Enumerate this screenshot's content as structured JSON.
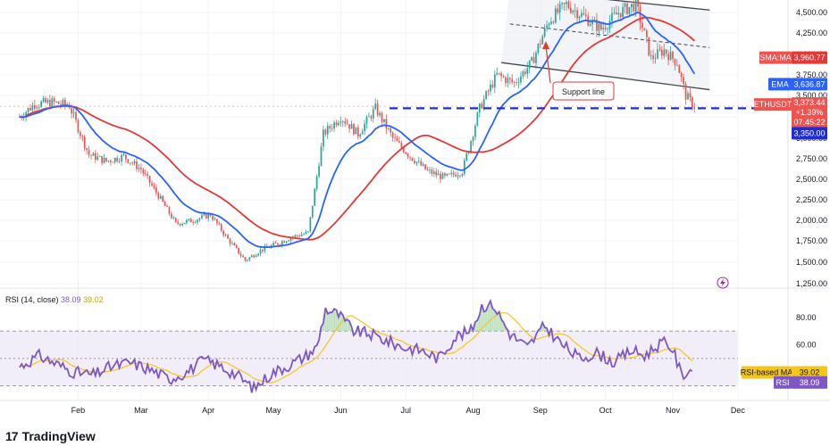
{
  "chart_data": [
    {
      "type": "candlestick",
      "symbol": "ETHUSDT",
      "x_labels": [
        "Feb",
        "Mar",
        "Apr",
        "May",
        "Jun",
        "Jul",
        "Aug",
        "Sep",
        "Oct",
        "Nov",
        "Dec"
      ],
      "y_ticks": [
        1250,
        1500,
        1750,
        2000,
        2250,
        2500,
        2750,
        3000,
        3250,
        3500,
        3750,
        4000,
        4250,
        4500
      ],
      "y_tick_labels": [
        "1,250.00",
        "1,500.00",
        "1,750.00",
        "2,000.00",
        "2,250.00",
        "2,500.00",
        "2,750.00",
        "3,000.00",
        "3,250.00",
        "3,500.00",
        "3,750.00",
        "4,000.00",
        "4,250.00",
        "4,500.00"
      ],
      "ylim": [
        1200,
        4600
      ],
      "grid": true,
      "close_anchors": {
        "dates": [
          "2024-01-05",
          "2024-01-12",
          "2024-01-20",
          "2024-01-28",
          "2024-02-06",
          "2024-02-14",
          "2024-02-22",
          "2024-03-01",
          "2024-03-09",
          "2024-03-17",
          "2024-03-25",
          "2024-04-02",
          "2024-04-10",
          "2024-04-18",
          "2024-04-25",
          "2024-05-03",
          "2024-05-10",
          "2024-05-17",
          "2024-05-24",
          "2024-06-01",
          "2024-06-09",
          "2024-06-17",
          "2024-06-25",
          "2024-07-03",
          "2024-07-11",
          "2024-07-19",
          "2024-07-27",
          "2024-08-04",
          "2024-08-12",
          "2024-08-20",
          "2024-08-28",
          "2024-09-05",
          "2024-09-13",
          "2024-09-21",
          "2024-09-29",
          "2024-10-07",
          "2024-10-15",
          "2024-10-22",
          "2024-10-28",
          "2024-11-03",
          "2024-11-07",
          "2024-11-11"
        ],
        "close": [
          3250,
          3400,
          3420,
          3380,
          2800,
          2720,
          2780,
          2620,
          2300,
          1960,
          2000,
          2070,
          1770,
          1520,
          1640,
          1720,
          1800,
          1850,
          3050,
          3250,
          3050,
          3350,
          3000,
          2780,
          2600,
          2520,
          2600,
          3350,
          3750,
          3650,
          3900,
          4400,
          4600,
          4450,
          4300,
          4500,
          4600,
          3950,
          4050,
          3900,
          3500,
          3373
        ]
      },
      "ema": {
        "name": "EMA",
        "value": 3636.87,
        "color": "#2962ff"
      },
      "sma": {
        "name": "SMA:MA",
        "value": 3960.77,
        "color": "#e53935"
      },
      "last_price": {
        "symbol": "ETHUSDT",
        "value": "3,373.44",
        "change": "+1.39%",
        "countdown": "07:45:22",
        "color": "#ef5350"
      },
      "support_level": {
        "value": 3350,
        "label": "3,350.00",
        "color": "#1c2ed8"
      },
      "annotation": "Support line",
      "channel": {
        "upper": [
          [
            "2024-08-18",
            4780
          ],
          [
            "2024-11-18",
            4530
          ]
        ],
        "lower": [
          [
            "2024-08-14",
            3900
          ],
          [
            "2024-11-18",
            3570
          ]
        ],
        "mid": [
          [
            "2024-08-18",
            4360
          ],
          [
            "2024-11-18",
            4080
          ]
        ]
      }
    },
    {
      "type": "line",
      "title": "RSI (14, close)",
      "ylim": [
        20,
        100
      ],
      "y_ticks": [
        80,
        60
      ],
      "y_tick_labels": [
        "80.00",
        "60.00"
      ],
      "band": [
        30,
        70
      ],
      "rsi": {
        "name": "RSI",
        "value": "38.09",
        "color": "#7e57c2"
      },
      "rsi_ma": {
        "name": "RSI-based MA",
        "value": "39.02",
        "color": "#f5c518"
      },
      "header_values": [
        "38.09",
        "39.02"
      ],
      "anchors": {
        "dates": [
          "2024-01-05",
          "2024-01-14",
          "2024-01-22",
          "2024-01-30",
          "2024-02-08",
          "2024-02-16",
          "2024-02-25",
          "2024-03-05",
          "2024-03-14",
          "2024-03-22",
          "2024-03-30",
          "2024-04-07",
          "2024-04-14",
          "2024-04-22",
          "2024-04-30",
          "2024-05-08",
          "2024-05-16",
          "2024-05-21",
          "2024-05-25",
          "2024-05-31",
          "2024-06-07",
          "2024-06-14",
          "2024-06-22",
          "2024-06-30",
          "2024-07-08",
          "2024-07-16",
          "2024-07-24",
          "2024-07-31",
          "2024-08-05",
          "2024-08-10",
          "2024-08-18",
          "2024-08-26",
          "2024-09-03",
          "2024-09-11",
          "2024-09-19",
          "2024-09-27",
          "2024-10-05",
          "2024-10-13",
          "2024-10-19",
          "2024-10-27",
          "2024-11-01",
          "2024-11-05",
          "2024-11-10"
        ],
        "values": [
          44,
          52,
          46,
          40,
          38,
          44,
          47,
          42,
          35,
          40,
          49,
          44,
          38,
          28,
          39,
          45,
          52,
          58,
          86,
          82,
          70,
          68,
          63,
          58,
          56,
          50,
          66,
          70,
          88,
          90,
          68,
          58,
          74,
          60,
          50,
          54,
          47,
          56,
          52,
          62,
          57,
          38,
          42
        ]
      }
    }
  ],
  "brand": {
    "logo": "17",
    "name": "TradingView"
  }
}
